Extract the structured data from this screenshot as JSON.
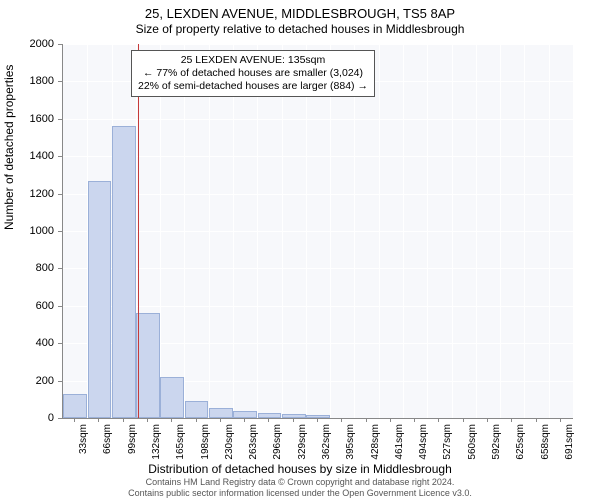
{
  "chart": {
    "type": "histogram",
    "title": "25, LEXDEN AVENUE, MIDDLESBROUGH, TS5 8AP",
    "subtitle": "Size of property relative to detached houses in Middlesbrough",
    "ylabel": "Number of detached properties",
    "xlabel": "Distribution of detached houses by size in Middlesbrough",
    "ylim": [
      0,
      2000
    ],
    "ytick_step": 200,
    "yticks": [
      0,
      200,
      400,
      600,
      800,
      1000,
      1200,
      1400,
      1600,
      1800,
      2000
    ],
    "xticks": [
      "33sqm",
      "66sqm",
      "99sqm",
      "132sqm",
      "165sqm",
      "198sqm",
      "230sqm",
      "263sqm",
      "296sqm",
      "329sqm",
      "362sqm",
      "395sqm",
      "428sqm",
      "461sqm",
      "494sqm",
      "527sqm",
      "560sqm",
      "592sqm",
      "625sqm",
      "658sqm",
      "691sqm"
    ],
    "values": [
      130,
      1270,
      1560,
      560,
      220,
      90,
      55,
      40,
      25,
      20,
      18,
      0,
      0,
      0,
      0,
      0,
      0,
      0,
      0,
      0,
      0
    ],
    "bar_color": "#cbd6ee",
    "bar_border_color": "#9bb0d8",
    "background_color": "#f7f8fb",
    "grid_color": "#ffffff",
    "axis_color": "#888888",
    "marker_value_index": 3.1,
    "marker_color": "#c63a3a",
    "annotation": {
      "line1": "25 LEXDEN AVENUE: 135sqm",
      "line2": "← 77% of detached houses are smaller (3,024)",
      "line3": "22% of semi-detached houses are larger (884) →"
    },
    "footer_line1": "Contains HM Land Registry data © Crown copyright and database right 2024.",
    "footer_line2": "Contains public sector information licensed under the Open Government Licence v3.0.",
    "title_fontsize": 13,
    "subtitle_fontsize": 12,
    "label_fontsize": 12,
    "tick_fontsize": 11
  }
}
